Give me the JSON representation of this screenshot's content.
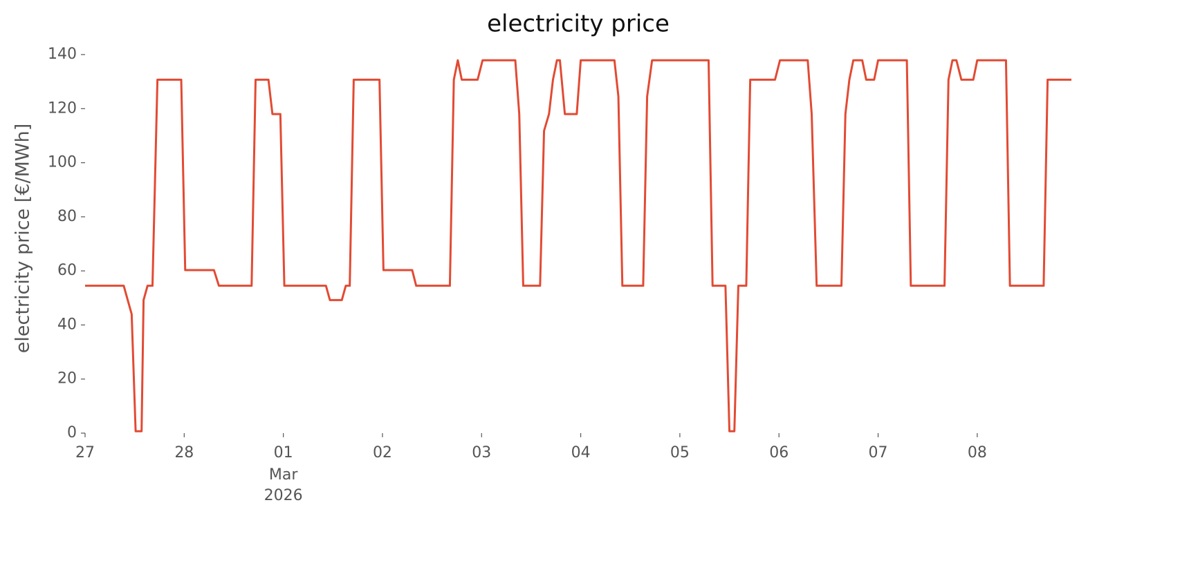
{
  "chart_data": {
    "type": "line",
    "title": "electricity price",
    "y_label": "electricity price [€/MWh]",
    "x": [
      0,
      0.39,
      0.47,
      0.51,
      0.57,
      0.59,
      0.63,
      0.68,
      0.73,
      0.97,
      1.01,
      1.3,
      1.35,
      1.68,
      1.72,
      1.85,
      1.89,
      1.97,
      2.01,
      2.43,
      2.47,
      2.59,
      2.63,
      2.67,
      2.71,
      2.97,
      3.01,
      3.3,
      3.34,
      3.68,
      3.72,
      3.76,
      3.8,
      3.96,
      4.01,
      4.34,
      4.38,
      4.42,
      4.59,
      4.63,
      4.68,
      4.72,
      4.76,
      4.79,
      4.84,
      4.96,
      5.0,
      5.34,
      5.38,
      5.42,
      5.63,
      5.67,
      5.72,
      6.29,
      6.33,
      6.46,
      6.5,
      6.55,
      6.59,
      6.67,
      6.71,
      6.96,
      7.01,
      7.29,
      7.33,
      7.38,
      7.63,
      7.67,
      7.71,
      7.75,
      7.84,
      7.88,
      7.96,
      8.0,
      8.29,
      8.33,
      8.67,
      8.71,
      8.75,
      8.79,
      8.84,
      8.96,
      9.0,
      9.29,
      9.33,
      9.67,
      9.71,
      9.95
    ],
    "series": [
      {
        "name": "electricity price",
        "color": "#e24a33",
        "values": [
          54.5,
          54.5,
          44,
          0.7,
          0.7,
          49.2,
          54.5,
          54.5,
          130.7,
          130.7,
          60.3,
          60.3,
          54.5,
          54.5,
          130.7,
          130.7,
          118,
          118,
          54.5,
          54.5,
          49.2,
          49.2,
          54.5,
          54.5,
          130.7,
          130.7,
          60.3,
          60.3,
          54.5,
          54.5,
          130.7,
          137.9,
          130.7,
          130.7,
          137.9,
          137.9,
          118,
          54.5,
          54.5,
          111.8,
          118,
          130.7,
          137.9,
          137.9,
          118,
          118,
          137.9,
          137.9,
          124.5,
          54.5,
          54.5,
          124.5,
          137.9,
          137.9,
          54.5,
          54.5,
          0.7,
          0.7,
          54.5,
          54.5,
          130.7,
          130.7,
          137.9,
          137.9,
          118,
          54.5,
          54.5,
          118,
          130.7,
          137.9,
          137.9,
          130.7,
          130.7,
          137.9,
          137.9,
          54.5,
          54.5,
          130.7,
          137.9,
          137.9,
          130.7,
          130.7,
          137.9,
          137.9,
          54.5,
          54.5,
          130.7,
          130.7
        ]
      }
    ],
    "xlim": [
      0,
      9.95
    ],
    "xticks": [
      {
        "value": 0,
        "label": "27"
      },
      {
        "value": 1,
        "label": "28"
      },
      {
        "value": 2,
        "label": "01",
        "sublabels": [
          "Mar",
          "2026"
        ]
      },
      {
        "value": 3,
        "label": "02"
      },
      {
        "value": 4,
        "label": "03"
      },
      {
        "value": 5,
        "label": "04"
      },
      {
        "value": 6,
        "label": "05"
      },
      {
        "value": 7,
        "label": "06"
      },
      {
        "value": 8,
        "label": "07"
      },
      {
        "value": 9,
        "label": "08"
      }
    ],
    "ylim": [
      0,
      140
    ],
    "yticks": [
      0,
      20,
      40,
      60,
      80,
      100,
      120,
      140
    ],
    "grid": false
  }
}
